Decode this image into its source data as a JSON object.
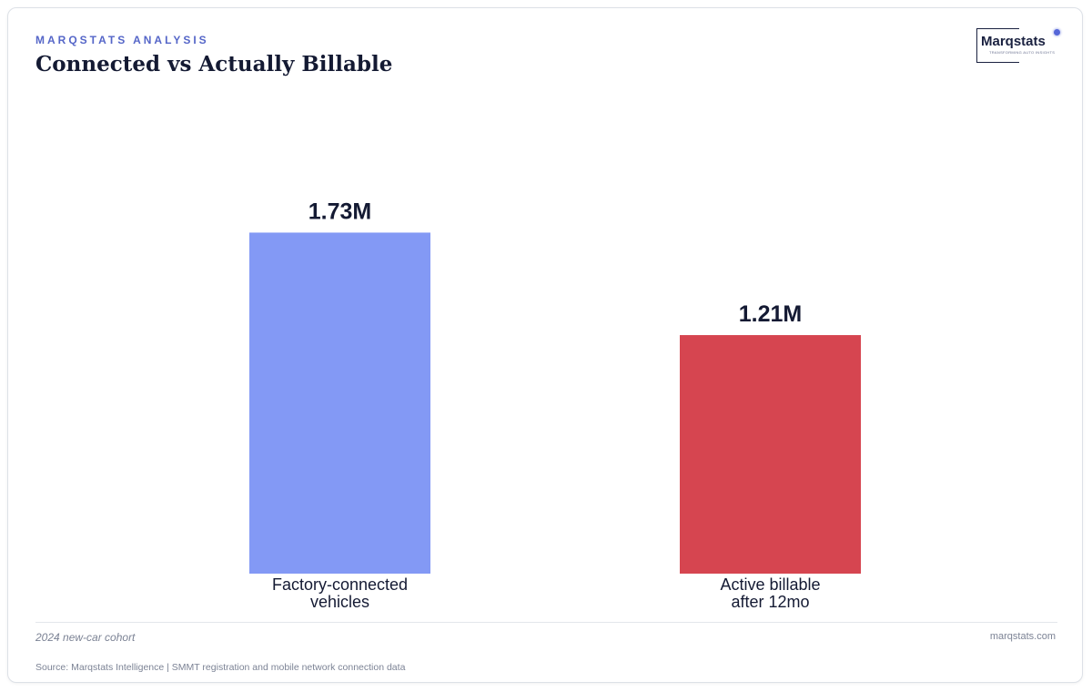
{
  "header": {
    "eyebrow": "MARQSTATS ANALYSIS",
    "title": "Connected vs Actually Billable"
  },
  "logo": {
    "name": "Marqstats",
    "tagline": "TRANSFORMING AUTO INSIGHTS"
  },
  "chart_data": {
    "type": "bar",
    "categories": [
      "Factory-connected vehicles",
      "Active billable after 12mo"
    ],
    "category_lines": [
      [
        "Factory-connected",
        "vehicles"
      ],
      [
        "Active billable",
        "after 12mo"
      ]
    ],
    "values": [
      1.73,
      1.21
    ],
    "value_labels": [
      "1.73M",
      "1.21M"
    ],
    "unit": "M",
    "colors": [
      "#8399f5",
      "#d64550"
    ],
    "ylim": [
      0,
      2.0
    ],
    "grid": false,
    "legend": "none",
    "title": "Connected vs Actually Billable"
  },
  "footer": {
    "note": "2024 new-car cohort",
    "site": "marqstats.com",
    "source": "Source: Marqstats Intelligence | SMMT registration and mobile network connection data"
  }
}
